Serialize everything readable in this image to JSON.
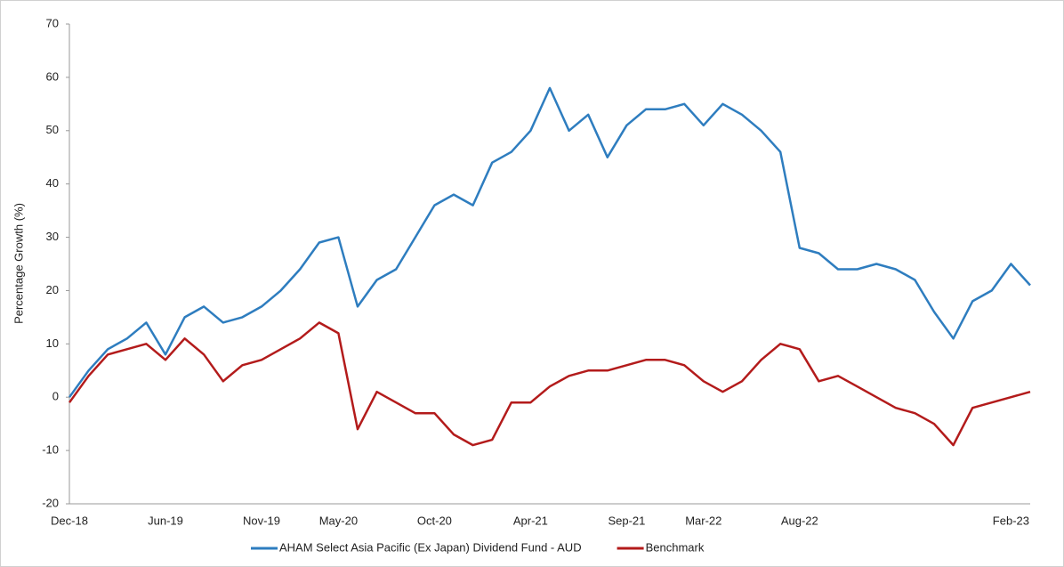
{
  "chart_data": {
    "type": "line",
    "y_label": "Percentage Growth (%)",
    "categories": [
      "Dec-18",
      null,
      null,
      null,
      null,
      "Jun-19",
      null,
      null,
      null,
      null,
      "Nov-19",
      null,
      null,
      null,
      "May-20",
      null,
      null,
      null,
      null,
      "Oct-20",
      null,
      null,
      null,
      null,
      "Apr-21",
      null,
      null,
      null,
      null,
      "Sep-21",
      null,
      null,
      null,
      "Mar-22",
      null,
      null,
      null,
      null,
      "Aug-22",
      null,
      null,
      null,
      null,
      null,
      null,
      null,
      null,
      null,
      null,
      "Feb-23",
      null
    ],
    "series": [
      {
        "name": "AHAM Select Asia Pacific (Ex Japan) Dividend Fund - AUD",
        "color": "#2e7dbf",
        "values": [
          0,
          5,
          9,
          11,
          14,
          8,
          15,
          17,
          14,
          15,
          17,
          20,
          24,
          29,
          30,
          17,
          22,
          24,
          30,
          36,
          38,
          36,
          44,
          46,
          50,
          58,
          50,
          53,
          45,
          51,
          54,
          54,
          55,
          51,
          55,
          53,
          50,
          46,
          28,
          27,
          24,
          24,
          25,
          24,
          22,
          16,
          11,
          18,
          20,
          25,
          21
        ]
      },
      {
        "name": "Benchmark",
        "color": "#b31b1b",
        "values": [
          -1,
          4,
          8,
          9,
          10,
          7,
          11,
          8,
          3,
          6,
          7,
          9,
          11,
          14,
          12,
          -6,
          1,
          -1,
          -3,
          -3,
          -7,
          -9,
          -8,
          -1,
          -1,
          2,
          4,
          5,
          5,
          6,
          7,
          7,
          6,
          3,
          1,
          3,
          7,
          10,
          9,
          3,
          4,
          2,
          0,
          -2,
          -3,
          -5,
          -9,
          -2,
          -1,
          0,
          1
        ]
      }
    ],
    "ylim": [
      -20,
      70
    ],
    "yticks": [
      -20,
      -10,
      0,
      10,
      20,
      30,
      40,
      50,
      60,
      70
    ],
    "grid": false
  }
}
